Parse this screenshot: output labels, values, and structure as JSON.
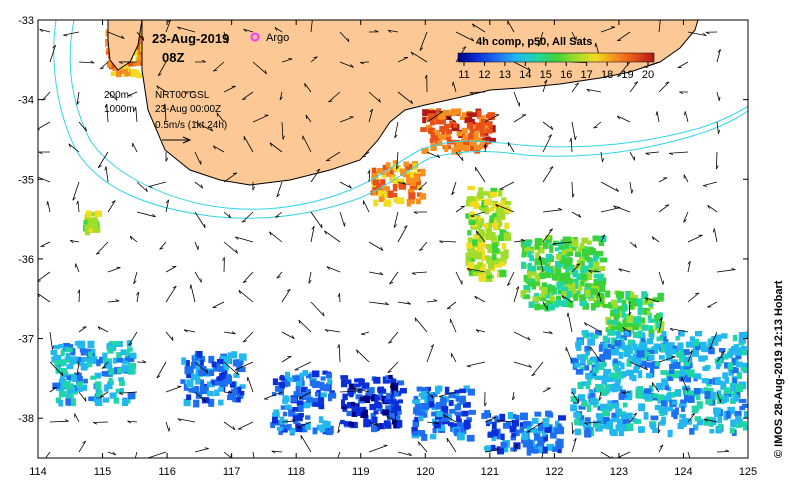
{
  "title": {
    "date": "23-Aug-2019",
    "hour": "08Z",
    "argo_label": "Argo",
    "argo_color": "#ff33ff"
  },
  "info": {
    "depth_200": "200m",
    "depth_1000": "1000m",
    "source": "NRT00 GSL",
    "time": "23-Aug 00:00Z",
    "scale": "0.5m/s (1kt 24h)"
  },
  "colorbar": {
    "title": "4h comp, p50, All Sats",
    "ticks": [
      "11",
      "12",
      "13",
      "14",
      "15",
      "16",
      "17",
      "18",
      "19",
      "20"
    ],
    "colors": [
      "#000080",
      "#0a2fd8",
      "#1e6ff0",
      "#22b8ee",
      "#20d6a8",
      "#3ad23a",
      "#a0dc2a",
      "#f0dc20",
      "#f59020",
      "#e85018",
      "#b01818"
    ]
  },
  "axes": {
    "x_ticks": [
      "114",
      "115",
      "116",
      "117",
      "118",
      "119",
      "120",
      "121",
      "122",
      "123",
      "124",
      "125"
    ],
    "y_ticks": [
      "-33",
      "-34",
      "-35",
      "-36",
      "-37",
      "-38"
    ],
    "xlim": [
      114,
      125
    ],
    "ylim": [
      -38.5,
      -33
    ]
  },
  "credit": "© IMOS 28-Aug-2019 12:13 Hobart",
  "colors": {
    "land": "#fbc896",
    "isobath": "#33d6e6",
    "coast": "#000000"
  }
}
